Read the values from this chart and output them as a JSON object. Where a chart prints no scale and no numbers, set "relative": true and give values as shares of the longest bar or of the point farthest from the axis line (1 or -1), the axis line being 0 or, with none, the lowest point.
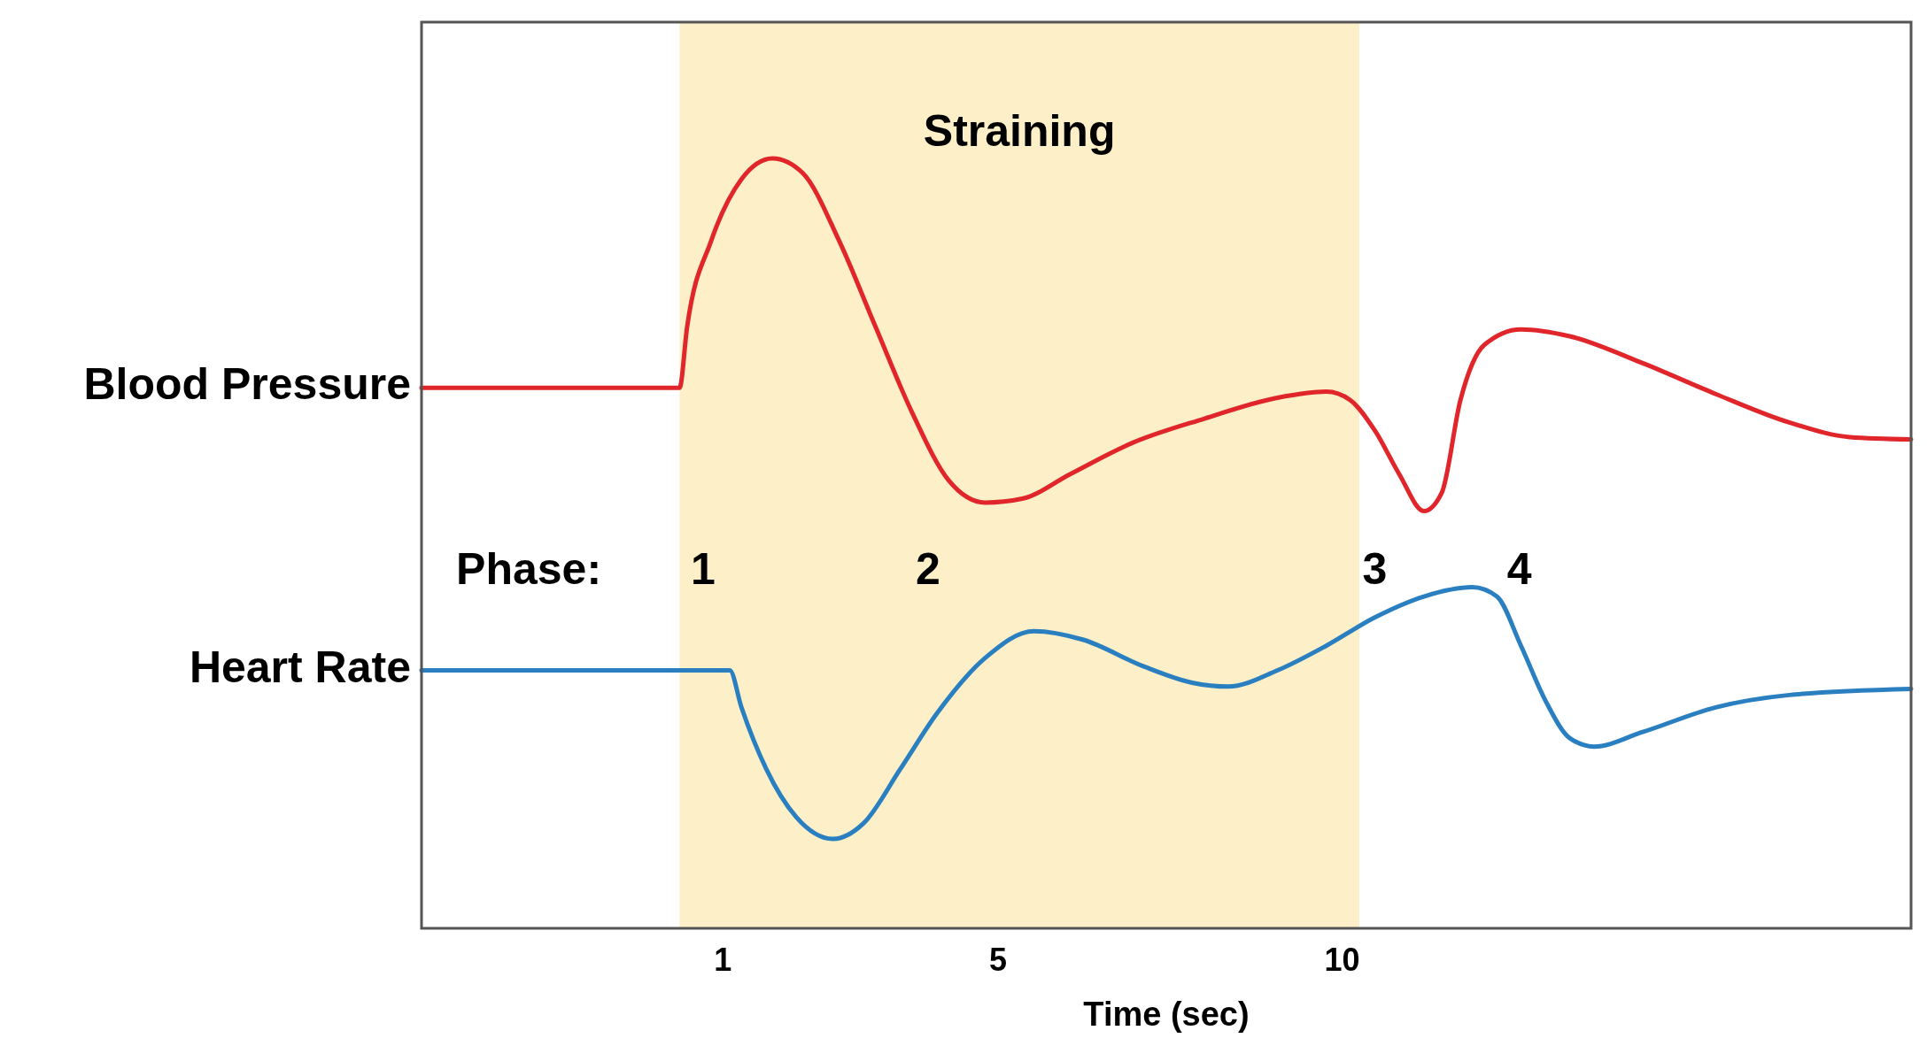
{
  "chart_data": {
    "type": "line",
    "relative": true,
    "xlabel": "Time (sec)",
    "xlim": [
      -3.38,
      18.27
    ],
    "xticks": [
      1,
      5,
      10
    ],
    "grid": false,
    "legend": false,
    "marker": "none",
    "line_style": "solid",
    "bands": [
      {
        "axis": "x",
        "from": 0.37,
        "to": 10.25,
        "label": "Straining",
        "color": "#fdf0c8"
      }
    ],
    "annotations": [
      "Phase:",
      "1",
      "2",
      "3",
      "4"
    ],
    "series": [
      {
        "name": "Blood Pressure",
        "color": "#e0262b",
        "x": [
          -3.38,
          0.37,
          0.48,
          0.83,
          1.27,
          1.72,
          2.16,
          2.69,
          3.22,
          3.75,
          4.28,
          4.81,
          5.35,
          6.05,
          6.94,
          8.0,
          9.06,
          9.77,
          10.12,
          10.48,
          10.83,
          11.19,
          11.45,
          11.72,
          12.07,
          12.6,
          13.31,
          14.37,
          15.43,
          16.5,
          17.38,
          18.27
        ],
        "values": [
          0.702,
          0.702,
          0.781,
          0.893,
          0.973,
          1.0,
          0.981,
          0.893,
          0.781,
          0.67,
          0.582,
          0.553,
          0.558,
          0.59,
          0.63,
          0.662,
          0.689,
          0.697,
          0.686,
          0.646,
          0.59,
          0.542,
          0.566,
          0.686,
          0.758,
          0.778,
          0.769,
          0.734,
          0.694,
          0.657,
          0.638,
          0.635
        ]
      },
      {
        "name": "Heart Rate",
        "color": "#2a7fc0",
        "x": [
          -3.38,
          1.1,
          1.27,
          1.63,
          2.07,
          2.6,
          3.04,
          3.58,
          4.11,
          4.81,
          5.52,
          6.23,
          7.12,
          7.82,
          8.35,
          9.06,
          9.77,
          10.48,
          11.19,
          11.89,
          12.25,
          12.6,
          12.96,
          13.31,
          13.66,
          14.37,
          15.43,
          16.5,
          18.27
        ],
        "values": [
          0.335,
          0.335,
          0.287,
          0.207,
          0.144,
          0.116,
          0.136,
          0.207,
          0.279,
          0.351,
          0.386,
          0.375,
          0.34,
          0.319,
          0.314,
          0.335,
          0.367,
          0.404,
          0.431,
          0.443,
          0.431,
          0.367,
          0.295,
          0.247,
          0.236,
          0.255,
          0.287,
          0.303,
          0.311
        ]
      }
    ]
  }
}
